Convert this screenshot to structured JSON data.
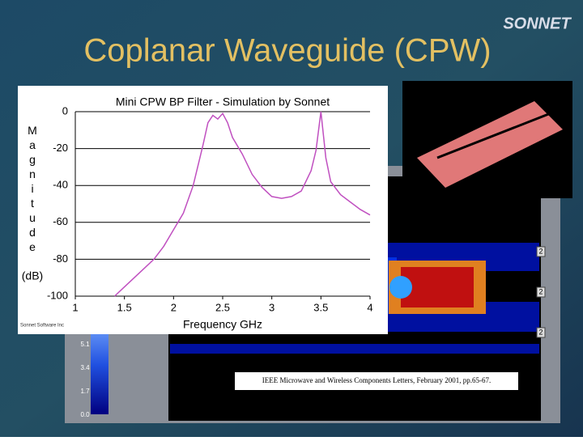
{
  "title": "Coplanar Waveguide (CPW)",
  "logo": "SONNET",
  "credit": "Sonnet Software Inc",
  "colorbar_labels": [
    "5.1",
    "3.4",
    "1.7",
    "0.0"
  ],
  "port_labels": [
    "2",
    "2",
    "2"
  ],
  "citation": "IEEE Microwave and Wireless Components Letters, February 2001, pp.65-67.",
  "chart_data": {
    "type": "line",
    "title": "Mini CPW BP Filter - Simulation by Sonnet",
    "x_label": "Frequency GHz",
    "y_label": "Magnitude",
    "y_unit": "(dB)",
    "color": "#c050c0",
    "x": [
      1.4,
      1.5,
      1.6,
      1.7,
      1.8,
      1.9,
      2.0,
      2.1,
      2.2,
      2.3,
      2.35,
      2.4,
      2.45,
      2.5,
      2.55,
      2.6,
      2.7,
      2.8,
      2.9,
      3.0,
      3.1,
      3.2,
      3.3,
      3.4,
      3.45,
      3.5,
      3.55,
      3.6,
      3.7,
      3.8,
      3.9,
      4.0
    ],
    "values": [
      -100,
      -95,
      -90,
      -85,
      -80,
      -73,
      -64,
      -55,
      -40,
      -18,
      -6,
      -2,
      -4,
      -1,
      -6,
      -14,
      -23,
      -34,
      -41,
      -46,
      -47,
      -46,
      -43,
      -32,
      -21,
      0,
      -25,
      -38,
      -45,
      -49,
      -53,
      -56
    ],
    "xlim": [
      1,
      4
    ],
    "xticks": [
      1,
      1.5,
      2,
      2.5,
      3,
      3.5,
      4
    ],
    "ylim": [
      -100,
      0
    ],
    "yticks": [
      0,
      -20,
      -40,
      -60,
      -80,
      -100
    ],
    "grid": true
  }
}
